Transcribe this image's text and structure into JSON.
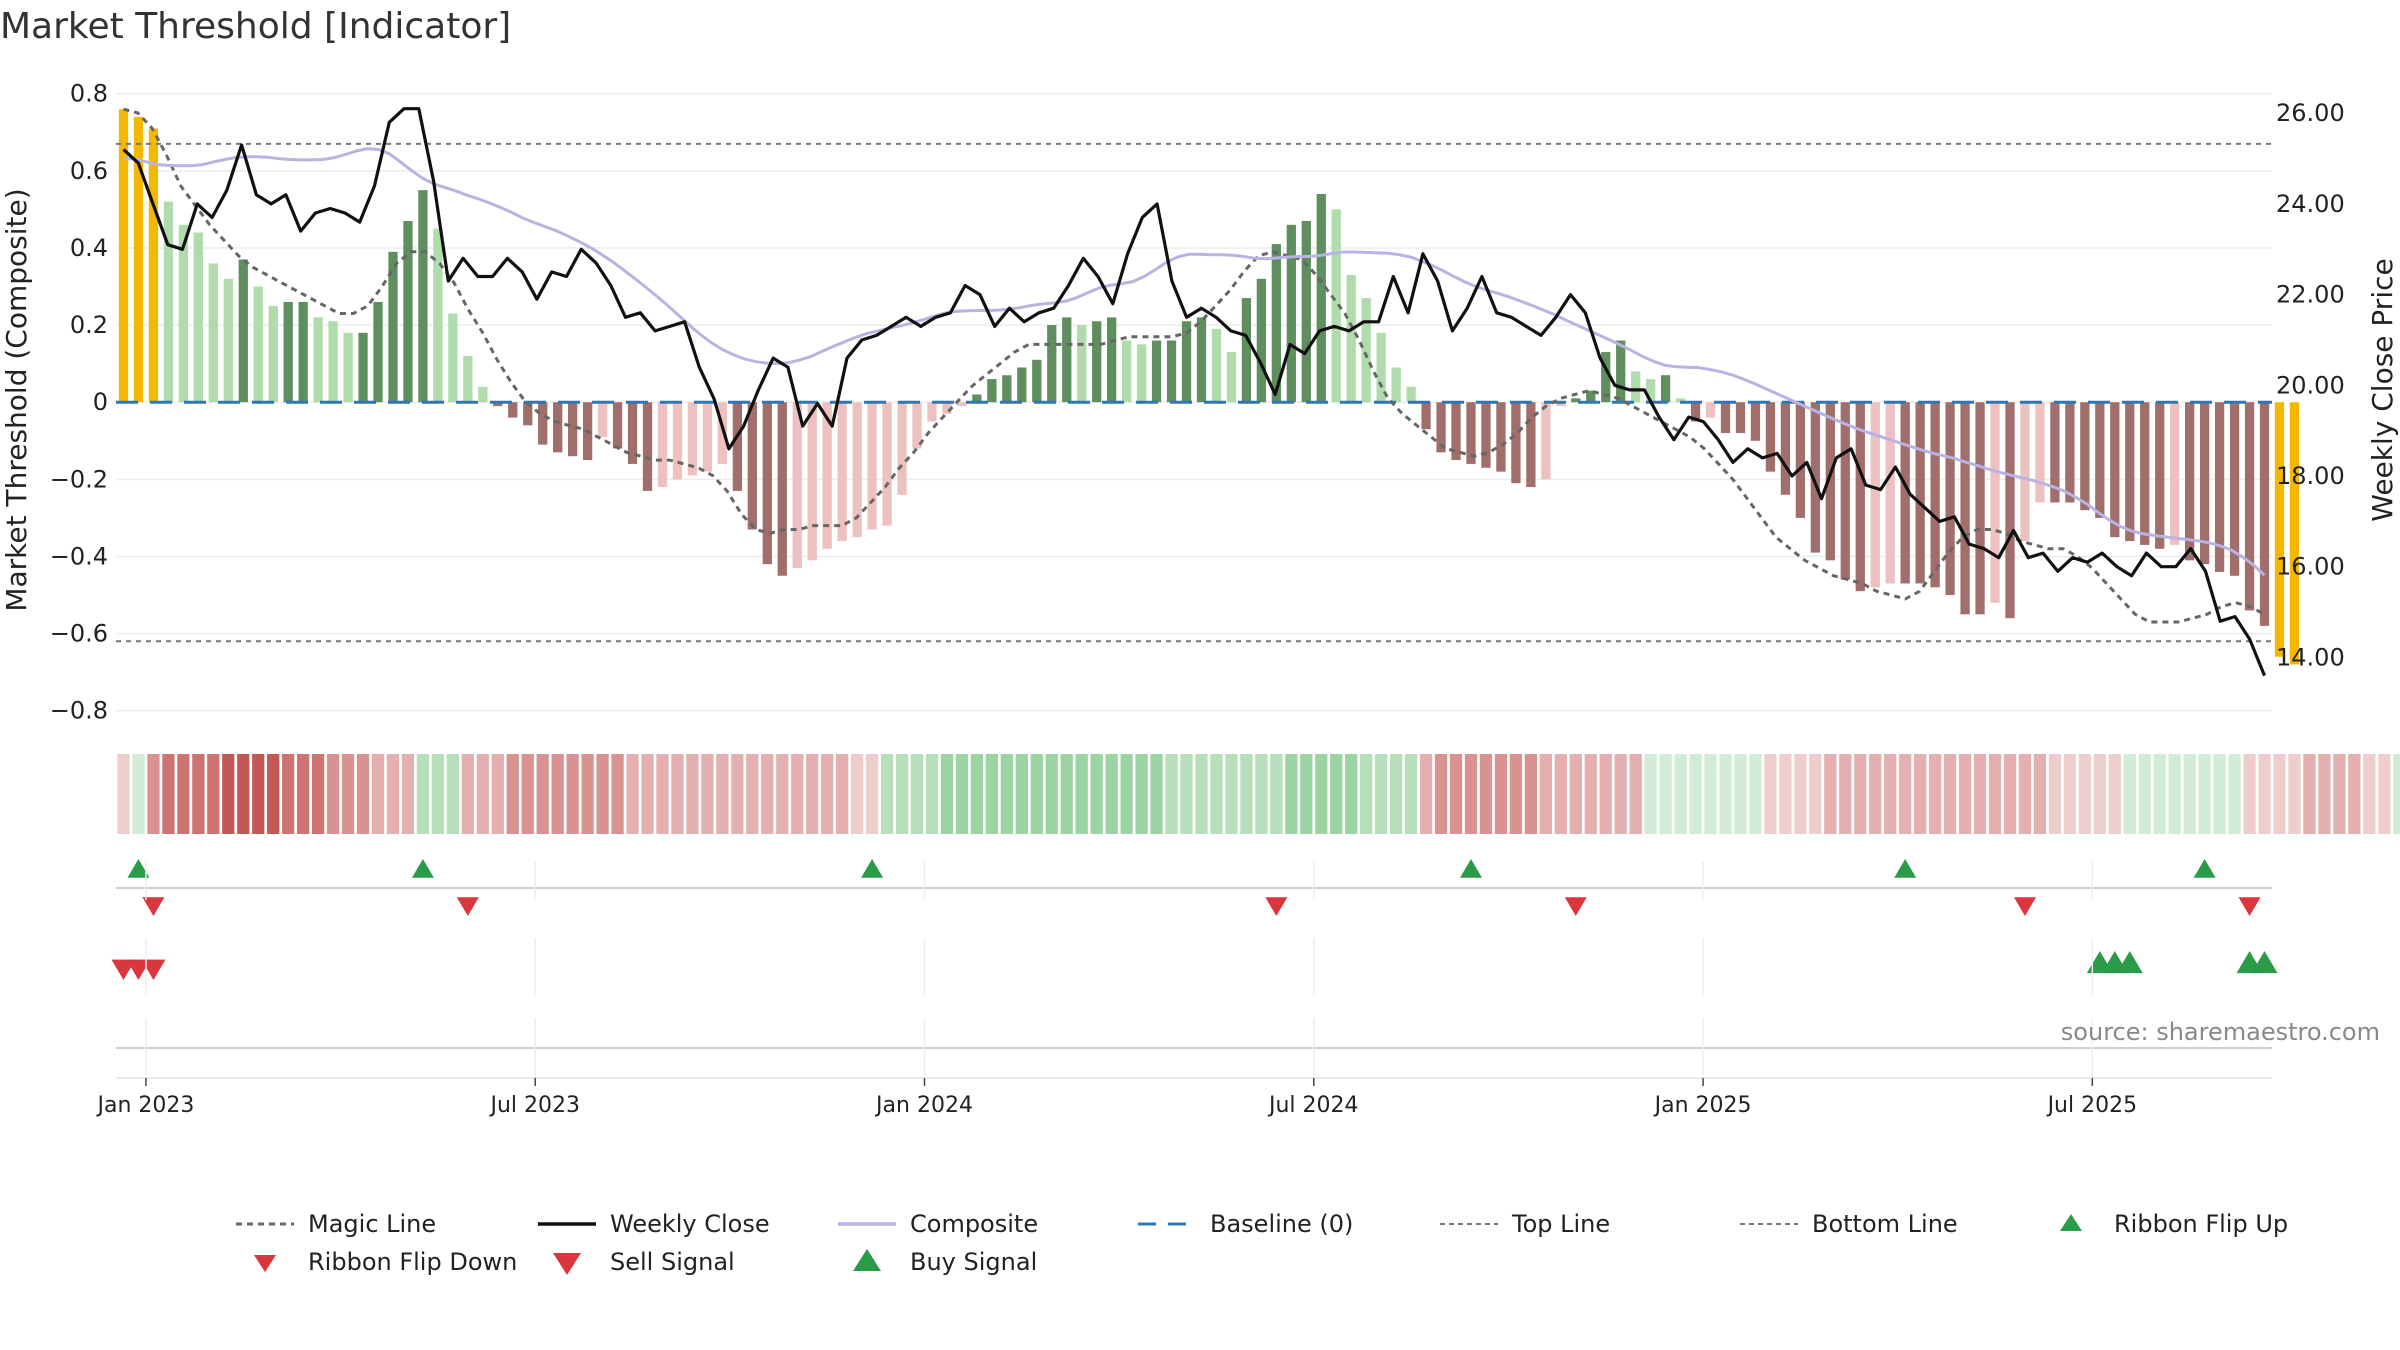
{
  "chart_data": {
    "type": "bar",
    "title": "Market Threshold [Indicator]",
    "ylabel_left": "Market Threshold (Composite)",
    "ylabel_right": "Weekly Close Price",
    "ylim_left": [
      -0.85,
      0.82
    ],
    "ylim_right": [
      12.4,
      26.6
    ],
    "yticks_left": [
      0.8,
      0.6,
      0.4,
      0.2,
      0,
      -0.2,
      -0.4,
      -0.6,
      -0.8
    ],
    "ytick_labels_left": [
      "0.8",
      "0.6",
      "0.4",
      "0.2",
      "0",
      "−0.2",
      "−0.4",
      "−0.6",
      "−0.8"
    ],
    "yticks_right": [
      26,
      24,
      22,
      20,
      18,
      16,
      14
    ],
    "ytick_labels_right": [
      "26.00",
      "24.00",
      "22.00",
      "20.00",
      "18.00",
      "16.00",
      "14.00"
    ],
    "x_tick_labels": [
      "Jan 2023",
      "Jul 2023",
      "Jan 2024",
      "Jul 2024",
      "Jan 2025",
      "Jul 2025"
    ],
    "x_tick_weeks": [
      1.5,
      27.5,
      53.5,
      79.5,
      105.5,
      131.5
    ],
    "n_weeks": 144,
    "top_line": 0.67,
    "bottom_line": -0.62,
    "composite_bars": [
      0.76,
      0.74,
      0.71,
      0.52,
      0.46,
      0.44,
      0.36,
      0.32,
      0.37,
      0.3,
      0.25,
      0.26,
      0.26,
      0.22,
      0.21,
      0.18,
      0.18,
      0.26,
      0.39,
      0.47,
      0.55,
      0.45,
      0.23,
      0.12,
      0.04,
      -0.01,
      -0.04,
      -0.06,
      -0.11,
      -0.13,
      -0.14,
      -0.15,
      -0.09,
      -0.12,
      -0.16,
      -0.23,
      -0.22,
      -0.2,
      -0.19,
      -0.18,
      -0.16,
      -0.23,
      -0.33,
      -0.42,
      -0.45,
      -0.43,
      -0.41,
      -0.38,
      -0.36,
      -0.35,
      -0.33,
      -0.32,
      -0.24,
      -0.12,
      -0.05,
      -0.03,
      -0.01,
      0.02,
      0.06,
      0.07,
      0.09,
      0.11,
      0.2,
      0.22,
      0.2,
      0.21,
      0.22,
      0.16,
      0.15,
      0.16,
      0.16,
      0.21,
      0.22,
      0.19,
      0.13,
      0.27,
      0.32,
      0.41,
      0.46,
      0.47,
      0.54,
      0.5,
      0.33,
      0.27,
      0.18,
      0.09,
      0.04,
      -0.07,
      -0.13,
      -0.15,
      -0.16,
      -0.17,
      -0.18,
      -0.21,
      -0.22,
      -0.2,
      -0.01,
      0.01,
      0.03,
      0.13,
      0.16,
      0.08,
      0.06,
      0.07,
      0.01,
      -0.05,
      -0.04,
      -0.08,
      -0.08,
      -0.1,
      -0.18,
      -0.24,
      -0.3,
      -0.39,
      -0.41,
      -0.46,
      -0.49,
      -0.48,
      -0.47,
      -0.47,
      -0.47,
      -0.48,
      -0.5,
      -0.55,
      -0.55,
      -0.52,
      -0.56,
      -0.36,
      -0.26,
      -0.26,
      -0.26,
      -0.28,
      -0.3,
      -0.35,
      -0.36,
      -0.37,
      -0.38,
      -0.37,
      -0.41,
      -0.42,
      -0.44,
      -0.45,
      -0.54,
      -0.58,
      -0.66,
      -0.68
    ],
    "weekly_close": [
      25.2,
      24.9,
      24.0,
      23.1,
      23.0,
      24.0,
      23.7,
      24.3,
      25.3,
      24.2,
      24.0,
      24.2,
      23.4,
      23.8,
      23.9,
      23.8,
      23.6,
      24.4,
      25.8,
      26.1,
      26.1,
      24.5,
      22.3,
      22.8,
      22.4,
      22.4,
      22.8,
      22.5,
      21.9,
      22.5,
      22.4,
      23.0,
      22.7,
      22.2,
      21.5,
      21.6,
      21.2,
      21.3,
      21.4,
      20.4,
      19.7,
      18.6,
      19.1,
      19.9,
      20.6,
      20.4,
      19.1,
      19.6,
      19.1,
      20.6,
      21.0,
      21.1,
      21.3,
      21.5,
      21.3,
      21.5,
      21.6,
      22.2,
      22.0,
      21.3,
      21.7,
      21.4,
      21.6,
      21.7,
      22.2,
      22.8,
      22.4,
      21.8,
      22.9,
      23.7,
      24.0,
      22.3,
      21.5,
      21.7,
      21.5,
      21.2,
      21.1,
      20.5,
      19.8,
      20.9,
      20.7,
      21.2,
      21.3,
      21.2,
      21.4,
      21.4,
      22.4,
      21.6,
      22.9,
      22.3,
      21.2,
      21.7,
      22.4,
      21.6,
      21.5,
      21.3,
      21.1,
      21.5,
      22.0,
      21.6,
      20.6,
      20.0,
      19.9,
      19.9,
      19.3,
      18.8,
      19.3,
      19.2,
      18.8,
      18.3,
      18.6,
      18.4,
      18.5,
      18.0,
      18.3,
      17.5,
      18.4,
      18.6,
      17.8,
      17.7,
      18.2,
      17.6,
      17.3,
      17.0,
      17.1,
      16.5,
      16.4,
      16.2,
      16.8,
      16.2,
      16.3,
      15.9,
      16.2,
      16.1,
      16.3,
      16.0,
      15.8,
      16.3,
      16.0,
      16.0,
      16.4,
      15.9,
      14.8,
      14.9,
      14.4,
      13.6
    ],
    "composite_line": [
      25.0,
      24.99,
      24.93,
      24.87,
      24.85,
      24.84,
      24.84,
      24.86,
      24.92,
      24.97,
      25.02,
      25.04,
      25.04,
      25.03,
      25.0,
      24.98,
      24.97,
      24.97,
      24.98,
      25.02,
      25.09,
      25.17,
      25.22,
      25.2,
      25.1,
      24.92,
      24.73,
      24.56,
      24.44,
      24.36,
      24.28,
      24.19,
      24.11,
      24.02,
      23.92,
      23.81,
      23.69,
      23.59,
      23.5,
      23.41,
      23.3,
      23.18,
      23.05,
      22.9,
      22.74,
      22.56,
      22.37,
      22.18,
      21.98,
      21.77,
      21.55,
      21.33,
      21.12,
      20.94,
      20.79,
      20.67,
      20.58,
      20.52,
      20.49,
      20.48,
      20.5,
      20.56,
      20.64,
      20.75,
      20.86,
      20.96,
      21.06,
      21.14,
      21.2,
      21.26,
      21.31,
      21.37,
      21.44,
      21.52,
      21.59,
      21.63,
      21.64,
      21.65,
      21.65,
      21.66,
      21.68,
      21.72,
      21.77,
      21.8,
      21.82,
      21.86,
      21.94,
      22.05,
      22.15,
      22.21,
      22.24,
      22.29,
      22.4,
      22.55,
      22.71,
      22.83,
      22.89,
      22.89,
      22.88,
      22.88,
      22.87,
      22.84,
      22.8,
      22.79,
      22.81,
      22.83,
      22.84,
      22.84,
      22.87,
      22.91,
      22.94,
      22.94,
      22.93,
      22.92,
      22.91,
      22.88,
      22.83,
      22.74,
      22.64,
      22.52,
      22.39,
      22.27,
      22.17,
      22.09,
      22.02,
      21.94,
      21.85,
      21.76,
      21.66,
      21.56,
      21.44,
      21.33,
      21.22,
      21.11,
      21.0,
      20.88,
      20.76,
      20.63,
      20.52,
      20.44,
      20.41,
      20.4,
      20.39,
      20.35,
      20.3,
      20.23,
      20.14,
      20.04,
      19.93,
      19.82,
      19.71,
      19.6,
      19.49,
      19.38,
      19.27,
      19.17,
      19.07,
      18.98,
      18.9,
      18.82,
      18.74,
      18.66,
      18.58,
      18.51,
      18.45,
      18.39,
      18.31,
      18.24,
      18.16,
      18.09,
      18.03,
      17.97,
      17.91,
      17.84,
      17.76,
      17.66,
      17.53,
      17.38,
      17.2,
      17.03,
      16.89,
      16.79,
      16.73,
      16.69,
      16.66,
      16.63,
      16.6,
      16.57,
      16.53,
      16.46,
      16.37,
      16.22,
      16.04,
      15.81
    ],
    "magic_line": [
      0.76,
      0.75,
      0.71,
      0.64,
      0.56,
      0.51,
      0.46,
      0.42,
      0.38,
      0.35,
      0.33,
      0.31,
      0.29,
      0.27,
      0.25,
      0.23,
      0.23,
      0.25,
      0.3,
      0.36,
      0.39,
      0.39,
      0.36,
      0.31,
      0.24,
      0.18,
      0.11,
      0.05,
      0.0,
      -0.03,
      -0.05,
      -0.06,
      -0.07,
      -0.09,
      -0.11,
      -0.13,
      -0.14,
      -0.15,
      -0.15,
      -0.16,
      -0.17,
      -0.19,
      -0.23,
      -0.29,
      -0.33,
      -0.34,
      -0.33,
      -0.33,
      -0.32,
      -0.32,
      -0.32,
      -0.3,
      -0.26,
      -0.22,
      -0.17,
      -0.13,
      -0.08,
      -0.04,
      0.0,
      0.04,
      0.07,
      0.1,
      0.13,
      0.15,
      0.15,
      0.15,
      0.15,
      0.15,
      0.15,
      0.16,
      0.17,
      0.17,
      0.17,
      0.17,
      0.18,
      0.21,
      0.25,
      0.29,
      0.34,
      0.38,
      0.39,
      0.38,
      0.37,
      0.33,
      0.28,
      0.23,
      0.16,
      0.08,
      0.01,
      -0.03,
      -0.06,
      -0.09,
      -0.12,
      -0.13,
      -0.14,
      -0.13,
      -0.11,
      -0.08,
      -0.04,
      -0.01,
      0.01,
      0.02,
      0.03,
      0.02,
      0.01,
      -0.01,
      -0.03,
      -0.05,
      -0.07,
      -0.09,
      -0.12,
      -0.16,
      -0.2,
      -0.25,
      -0.3,
      -0.35,
      -0.38,
      -0.41,
      -0.43,
      -0.45,
      -0.46,
      -0.47,
      -0.49,
      -0.5,
      -0.51,
      -0.49,
      -0.44,
      -0.39,
      -0.35,
      -0.33,
      -0.33,
      -0.34,
      -0.36,
      -0.37,
      -0.38,
      -0.38,
      -0.4,
      -0.43,
      -0.47,
      -0.51,
      -0.55,
      -0.57,
      -0.57,
      -0.57,
      -0.56,
      -0.55,
      -0.53,
      -0.52,
      -0.53,
      -0.55
    ],
    "ribbon": [
      -1,
      1,
      -3,
      -4,
      -4,
      -4,
      -4,
      -5,
      -5,
      -5,
      -5,
      -4,
      -4,
      -4,
      -3,
      -3,
      -3,
      -2,
      -2,
      -2,
      2,
      2,
      2,
      -2,
      -2,
      -2,
      -3,
      -3,
      -3,
      -3,
      -3,
      -3,
      -3,
      -3,
      -2,
      -2,
      -2,
      -2,
      -2,
      -2,
      -2,
      -2,
      -2,
      -2,
      -2,
      -2,
      -2,
      -2,
      -2,
      -1,
      -1,
      2,
      2,
      2,
      2,
      3,
      3,
      3,
      3,
      3,
      3,
      3,
      3,
      3,
      3,
      3,
      3,
      3,
      3,
      3,
      2,
      2,
      2,
      2,
      2,
      2,
      2,
      2,
      3,
      3,
      3,
      3,
      3,
      2,
      2,
      2,
      2,
      -2,
      -3,
      -3,
      -3,
      -3,
      -3,
      -3,
      -3,
      -2,
      -2,
      -2,
      -2,
      -2,
      -2,
      -2,
      1,
      1,
      1,
      1,
      1,
      1,
      1,
      1,
      -1,
      -1,
      -1,
      -1,
      -2,
      -2,
      -2,
      -2,
      -2,
      -2,
      -2,
      -2,
      -2,
      -2,
      -2,
      -2,
      -2,
      -2,
      -2,
      -1,
      -1,
      -1,
      -1,
      -1,
      1,
      1,
      1,
      1,
      1,
      1,
      1,
      1,
      -1,
      -1,
      -1,
      -1,
      -2,
      -2,
      -2,
      -2,
      -1,
      -1,
      1,
      1,
      1,
      -1
    ],
    "ribbon_flip_up_weeks": [
      1,
      20,
      50,
      90,
      119,
      139
    ],
    "ribbon_flip_down_weeks": [
      2,
      23,
      77,
      97,
      127,
      142
    ],
    "sell_signal_weeks": [
      0,
      1,
      2
    ],
    "buy_signal_weeks": [
      132,
      133,
      134,
      142,
      143
    ],
    "legend": {
      "magic_line": "Magic Line",
      "weekly_close": "Weekly Close",
      "composite": "Composite",
      "baseline": "Baseline (0)",
      "top_line": "Top Line",
      "bottom_line": "Bottom Line",
      "ribbon_flip_up": "Ribbon Flip Up",
      "ribbon_flip_down": "Ribbon Flip Down",
      "sell_signal": "Sell Signal",
      "buy_signal": "Buy Signal"
    },
    "colors": {
      "extreme_bar": "#f5b800",
      "strong_up": "#5f8f5f",
      "weak_up": "#b0dbab",
      "strong_down": "#a06e6b",
      "weak_down": "#ecc1bf",
      "magic_line": "#666666",
      "weekly_close": "#111111",
      "composite": "#b9b3e3",
      "baseline": "#2f77b4",
      "ref_line": "#777777",
      "buy": "#2a9c48",
      "sell": "#d9363e",
      "ribbon_red": "#c0504d",
      "ribbon_green": "#5fb86a"
    }
  },
  "source_text": "source: sharemaestro.com"
}
